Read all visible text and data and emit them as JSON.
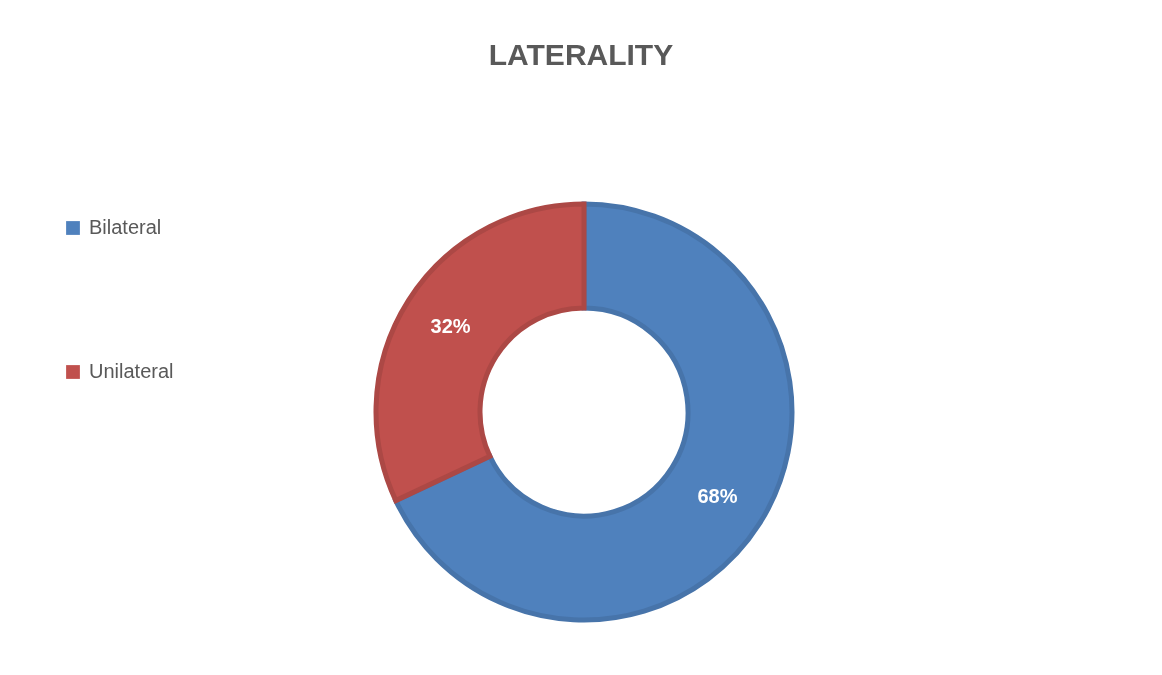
{
  "chart_data": {
    "type": "donut",
    "title": "LATERALITY",
    "categories": [
      "Bilateral",
      "Unilateral"
    ],
    "values": [
      68,
      32
    ],
    "colors": [
      "#4f81bd",
      "#c0504d"
    ],
    "value_labels": [
      "68%",
      "32%"
    ],
    "legend": "left"
  }
}
